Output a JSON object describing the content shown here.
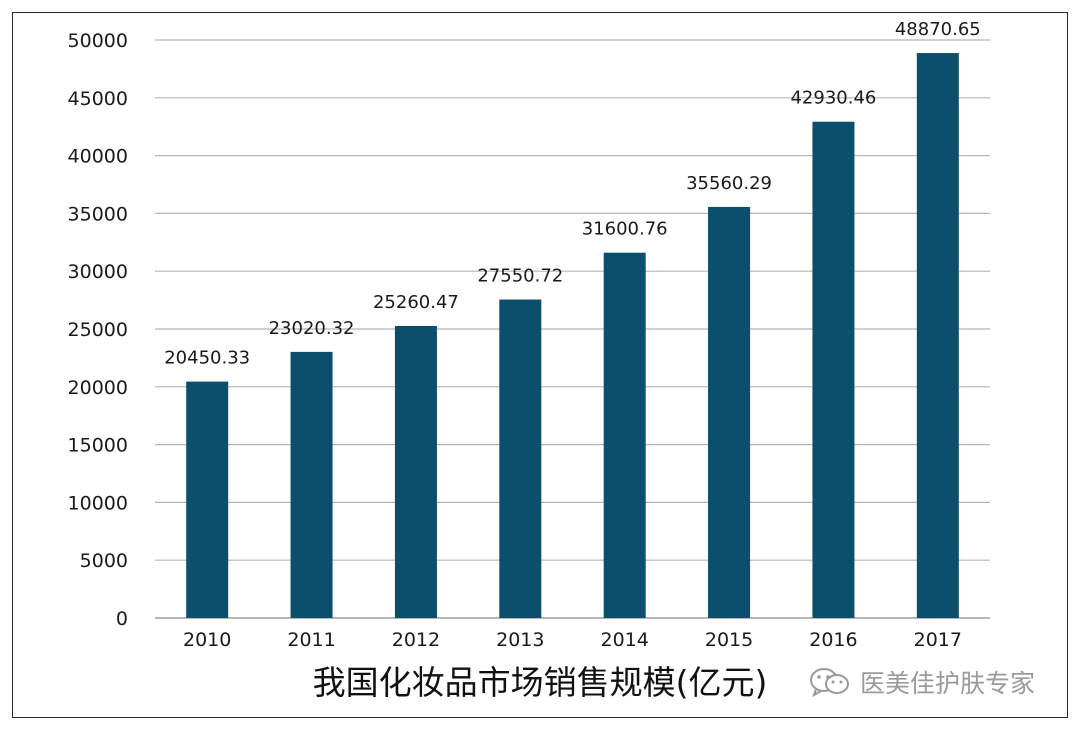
{
  "chart_data": {
    "type": "bar",
    "title": "我国化妆品市场销售规模(亿元)",
    "categories": [
      "2010",
      "2011",
      "2012",
      "2013",
      "2014",
      "2015",
      "2016",
      "2017"
    ],
    "values": [
      20450.33,
      23020.32,
      25260.47,
      27550.72,
      31600.76,
      35560.29,
      42930.46,
      48870.65
    ],
    "data_labels": [
      "20450.33",
      "23020.32",
      "25260.47",
      "27550.72",
      "31600.76",
      "35560.29",
      "42930.46",
      "48870.65"
    ],
    "y_ticks": [
      "0",
      "5000",
      "10000",
      "15000",
      "20000",
      "25000",
      "30000",
      "35000",
      "40000",
      "45000",
      "50000"
    ],
    "ylim": [
      0,
      50000
    ],
    "grid": true,
    "legend": "none",
    "bar_color": "#0b4f6c"
  },
  "watermark": {
    "text": "医美佳护肤专家",
    "icon": "wechat-icon"
  }
}
